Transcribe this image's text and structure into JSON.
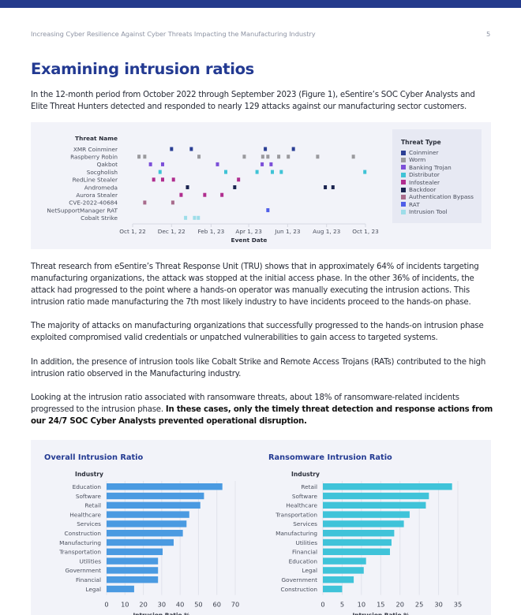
{
  "header": {
    "running_title": "Increasing Cyber Resilience Against Cyber Threats Impacting the Manufacturing Industry",
    "page_number": "5",
    "accent_color": "#243a8c"
  },
  "section": {
    "title": "Examining intrusion ratios",
    "intro": "In the 12-month period from October 2022 through September 2023 (Figure 1), eSentire’s SOC Cyber Analysts and Elite Threat Hunters detected and responded to nearly 129 attacks against our manufacturing sector customers.",
    "p1": "Threat research from eSentire’s Threat Response Unit (TRU) shows that in approximately 64% of incidents targeting manufacturing organizations, the attack was stopped at the initial access phase. In the other 36% of incidents, the attack had progressed to the point where a hands-on operator was manually executing the intrusion actions. This intrusion ratio made manufacturing the 7th most likely industry to have incidents proceed to the hands-on phase.",
    "p2": "The majority of attacks on manufacturing organizations that successfully progressed to the hands-on intrusion phase exploited compromised valid credentials or unpatched vulnerabilities to gain access to targeted systems.",
    "p3": "In addition, the presence of intrusion tools like Cobalt Strike and Remote Access Trojans (RATs) contributed to the high intrusion ratio observed in the Manufacturing industry.",
    "p4_plain": "Looking at the intrusion ratio associated with ransomware threats, about 18% of ransomware-related incidents progressed to the intrusion phase. ",
    "p4_bold": "In these cases, only the timely threat detection and response actions from our 24/7 SOC Cyber Analysts prevented operational disruption."
  },
  "chart_data": [
    {
      "type": "scatter",
      "title": "",
      "xlabel": "Event Date",
      "ylabel": "Threat Name",
      "x_unit": "days since Oct 1, 2022",
      "xlim": [
        0,
        365
      ],
      "x_ticks": [
        {
          "label": "Oct 1, 22",
          "value": 0
        },
        {
          "label": "Dec 1, 22",
          "value": 61
        },
        {
          "label": "Feb 1, 23",
          "value": 123
        },
        {
          "label": "Apr 1, 23",
          "value": 182
        },
        {
          "label": "Jun 1, 23",
          "value": 243
        },
        {
          "label": "Aug 1, 23",
          "value": 304
        },
        {
          "label": "Oct 1, 23",
          "value": 365
        }
      ],
      "categories": [
        "XMR Coinminer",
        "Raspberry Robin",
        "Qakbot",
        "Socgholish",
        "RedLine Stealer",
        "Andromeda",
        "Aurora Stealer",
        "CVE-2022-40684",
        "NetSupportManager RAT",
        "Cobalt Strike"
      ],
      "legend_title": "Threat Type",
      "legend_position": "right",
      "legend": [
        {
          "name": "Coinminer",
          "color": "#2b3f95"
        },
        {
          "name": "Worm",
          "color": "#9a9a9e"
        },
        {
          "name": "Banking Trojan",
          "color": "#7c4fd8"
        },
        {
          "name": "Distributor",
          "color": "#3fc3d6"
        },
        {
          "name": "Infostealer",
          "color": "#b02d8f"
        },
        {
          "name": "Backdoor",
          "color": "#1b2450"
        },
        {
          "name": "Authentication Bypass",
          "color": "#a86b8c"
        },
        {
          "name": "RAT",
          "color": "#4f5ee8"
        },
        {
          "name": "Intrusion Tool",
          "color": "#9ddde9"
        }
      ],
      "series": [
        {
          "name": "XMR Coinminer",
          "type": "Coinminer",
          "x": [
            61,
            92,
            208,
            252
          ]
        },
        {
          "name": "Raspberry Robin",
          "type": "Worm",
          "x": [
            10,
            19,
            104,
            175,
            204,
            212,
            229,
            244,
            290,
            346
          ]
        },
        {
          "name": "Qakbot",
          "type": "Banking Trojan",
          "x": [
            28,
            47,
            133,
            203,
            217
          ]
        },
        {
          "name": "Socgholish",
          "type": "Distributor",
          "x": [
            43,
            146,
            195,
            219,
            233,
            364
          ]
        },
        {
          "name": "RedLine Stealer",
          "type": "Infostealer",
          "x": [
            33,
            47,
            64,
            166
          ]
        },
        {
          "name": "Andromeda",
          "type": "Backdoor",
          "x": [
            86,
            160,
            302,
            314
          ]
        },
        {
          "name": "Aurora Stealer",
          "type": "Infostealer",
          "x": [
            76,
            113,
            140
          ]
        },
        {
          "name": "CVE-2022-40684",
          "type": "Authentication Bypass",
          "x": [
            19,
            63
          ]
        },
        {
          "name": "NetSupportManager RAT",
          "type": "RAT",
          "x": [
            212
          ]
        },
        {
          "name": "Cobalt Strike",
          "type": "Intrusion Tool",
          "x": [
            83,
            97,
            103
          ]
        }
      ]
    },
    {
      "type": "bar",
      "orientation": "horizontal",
      "title": "Overall Intrusion Ratio",
      "ylabel": "Industry",
      "xlabel": "Intrusion Ratio %",
      "xlim": [
        0,
        70
      ],
      "x_ticks": [
        0,
        10,
        20,
        30,
        40,
        50,
        60,
        70
      ],
      "grid": true,
      "color": "#4a9ae1",
      "categories": [
        "Education",
        "Software",
        "Retail",
        "Healthcare",
        "Services",
        "Construction",
        "Manufacturing",
        "Transportation",
        "Utilities",
        "Government",
        "Financial",
        "Legal"
      ],
      "values": [
        63,
        53,
        51,
        45,
        43.5,
        41.5,
        36.5,
        30.5,
        28,
        28,
        28,
        15
      ]
    },
    {
      "type": "bar",
      "orientation": "horizontal",
      "title": "Ransomware Intrusion Ratio",
      "ylabel": "Industry",
      "xlabel": "Intrusion Ratio %",
      "xlim": [
        0,
        35
      ],
      "x_ticks": [
        0,
        5,
        10,
        15,
        20,
        25,
        30,
        35
      ],
      "grid": true,
      "color": "#3fc3d9",
      "categories": [
        "Retail",
        "Software",
        "Healthcare",
        "Transportation",
        "Services",
        "Manufacturing",
        "Utilities",
        "Financial",
        "Education",
        "Legal",
        "Government",
        "Construction"
      ],
      "values": [
        33.5,
        27.5,
        26.7,
        22.5,
        21,
        18.5,
        17.8,
        17.4,
        11.2,
        10.6,
        8,
        5
      ]
    }
  ]
}
